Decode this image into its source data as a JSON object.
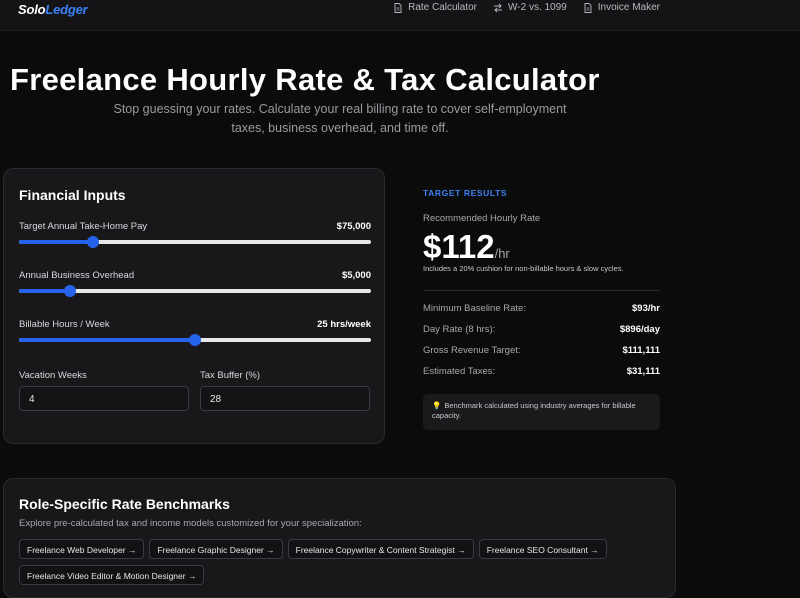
{
  "nav": {
    "brand_part1": "Solo",
    "brand_part2": "Ledger",
    "links": [
      {
        "label": "Rate Calculator",
        "icon": "document-icon"
      },
      {
        "label": "W-2 vs. 1099",
        "icon": "swap-arrows-icon"
      },
      {
        "label": "Invoice Maker",
        "icon": "document-icon"
      }
    ]
  },
  "hero": {
    "title": "Freelance Hourly Rate & Tax Calculator",
    "subtitle": "Stop guessing your rates. Calculate your real billing rate to cover self-employment taxes, business overhead, and time off."
  },
  "inputs": {
    "title": "Financial Inputs",
    "sliders": [
      {
        "label": "Target Annual Take-Home Pay",
        "value": "$75,000",
        "fraction": 0.21
      },
      {
        "label": "Annual Business Overhead",
        "value": "$5,000",
        "fraction": 0.145
      },
      {
        "label": "Billable Hours / Week",
        "value": "25 hrs/week",
        "fraction": 0.5
      }
    ],
    "vacation": {
      "label": "Vacation Weeks",
      "value": "4"
    },
    "tax_buffer": {
      "label": "Tax Buffer (%)",
      "value": "28"
    }
  },
  "results": {
    "heading": "TARGET RESULTS",
    "recommended_label": "Recommended Hourly Rate",
    "recommended_value": "$112",
    "recommended_unit": "/hr",
    "note": "Includes a 20% cushion for non-billable hours & slow cycles.",
    "lines": [
      {
        "label": "Minimum Baseline Rate:",
        "value": "$93/hr"
      },
      {
        "label": "Day Rate (8 hrs):",
        "value": "$896/day"
      },
      {
        "label": "Gross Revenue Target:",
        "value": "$111,111"
      },
      {
        "label": "Estimated Taxes:",
        "value": "$31,111"
      }
    ],
    "tip": "Benchmark calculated using industry averages for billable capacity."
  },
  "benchmarks": {
    "title": "Role-Specific Rate Benchmarks",
    "subtitle": "Explore pre-calculated tax and income models customized for your specialization:",
    "chips": [
      "Freelance Web Developer →",
      "Freelance Graphic Designer →",
      "Freelance Copywriter & Content Strategist →",
      "Freelance SEO Consultant →",
      "Freelance Video Editor & Motion Designer →"
    ]
  },
  "colors": {
    "accent": "#2563eb",
    "brand_accent": "#3b82f6",
    "background": "#0b0b0c",
    "card": "#18181b"
  }
}
